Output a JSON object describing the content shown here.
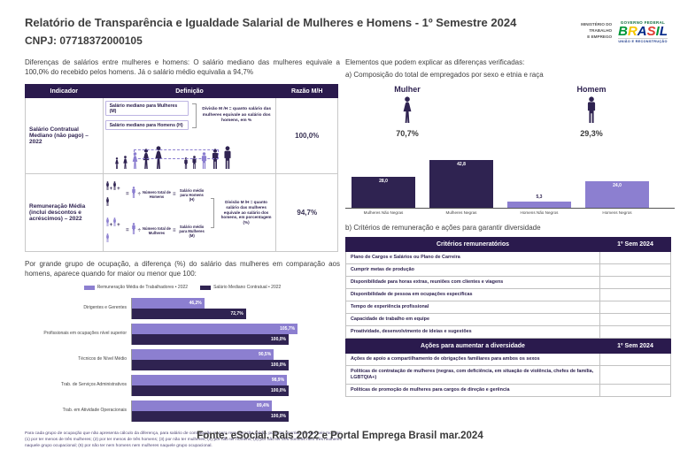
{
  "header": {
    "title": "Relatório de Transparência e Igualdade Salarial de Mulheres e Homens - 1º Semestre 2024",
    "cnpj": "CNPJ: 07718372000105",
    "logo": {
      "ministry": "MINISTÉRIO DO\nTRABALHO\nE EMPREGO",
      "gov_top": "GOVERNO FEDERAL",
      "gov_name": "BRASIL",
      "gov_sub": "UNIÃO E RECONSTRUÇÃO",
      "brasil_colors": [
        "#009739",
        "#f6c700",
        "#012788",
        "#e03c31",
        "#009739",
        "#012788"
      ]
    }
  },
  "left": {
    "intro": "Diferenças de salários entre mulheres e homens: O salário mediano das mulheres equivale a 100,0% do recebido pelos homens. Já o salário médio equivalia a 94,7%",
    "table": {
      "headers": [
        "Indicador",
        "Definição",
        "Razão M/H"
      ],
      "rows": [
        {
          "indicador": "Salário Contratual Mediano (não pago) – 2022",
          "def_label_m": "Salário mediano para Mulheres (M)",
          "def_label_h": "Salário mediano para Homens (H)",
          "def_note": "Divisão M /H = quanto salário das mulheres equivale ao salário dos homens, em %",
          "razao": "100,0%"
        },
        {
          "indicador": "Remuneração Média (inclui descontos e acréscimos) – 2022",
          "num_h": "Número total de Homens",
          "avg_h": "Salário médio para Homens (H)",
          "num_m": "Número total de Mulheres",
          "avg_m": "Salário médio para Mulheres (M)",
          "def_note": "Divisão M /H = quanto salário das mulheres equivale ao salário dos homens, em porcentagem (%)",
          "razao": "94,7%"
        }
      ]
    },
    "occupation_intro": "Por grande grupo de ocupação, a diferença (%) do salário das mulheres em comparação aos homens, aparece quando for maior ou menor que 100:",
    "footnote": "Para cada grupo de ocupação que não apresenta cálculo da diferença, para salário de contratação ou para remuneração média, pode ter ocorrido um dos seis motivos: (1) por ter menos de três mulheres; (2) por ter menos de três homens; (3) por não ter mulheres; (4) por não ter homens; (5) por não ter três homens nem três mulheres naquele grupo ocupacional; (6) por não ter nem homens nem mulheres naquele grupo ocupacional."
  },
  "right": {
    "heading": "Elementos que podem explicar as diferenças verificadas:",
    "sub_a": "a) Composição do total de empregados por sexo e etnia e raça",
    "mulher_label": "Mulher",
    "homem_label": "Homem",
    "sub_b": "b) Critérios de remuneração e ações para garantir diversidade",
    "table1": {
      "header": "Critérios remuneratórios",
      "period": "1º Sem 2024",
      "rows": [
        "Plano de Cargos e Salários ou Plano de Carreira",
        "Cumprir metas de produção",
        "Disponibilidade para horas extras, reuniões com clientes e viagens",
        "Disponibilidade de pessoa em ocupações específicas",
        "Tempo de experiência profissional",
        "Capacidade de trabalho em equipe",
        "Proatividade, desenvolvimento de ideias e sugestões"
      ]
    },
    "table2": {
      "header": "Ações para aumentar a diversidade",
      "period": "1º Sem 2024",
      "rows": [
        "Ações de apoio a compartilhamento de obrigações familiares para ambos os sexos",
        "Políticas de contratação de mulheres (negras, com deficiência, em situação de violência, chefes de família, LGBTQIA+)",
        "Políticas de promoção de mulheres para cargos de direção e gerência"
      ]
    }
  },
  "chart_data": [
    {
      "type": "bar",
      "title": "a) Composição do total de empregados por sexo e etnia e raça",
      "categories": [
        "Mulheres Não Negras",
        "Mulheres Negras",
        "Homens Não Negros",
        "Homens Negros"
      ],
      "values": [
        28.0,
        42.8,
        5.3,
        24.0
      ],
      "value_labels": [
        "28,0",
        "42,8",
        "5,3",
        "24,0"
      ],
      "bar_colors": [
        "#2f2351",
        "#2f2351",
        "#8c7fd0",
        "#8c7fd0"
      ],
      "ylim": [
        0,
        50
      ],
      "grid": false,
      "group_totals": {
        "mulher": "70,7%",
        "homem": "29,3%"
      }
    },
    {
      "type": "bar",
      "orientation": "horizontal",
      "categories": [
        "Dirigentes e Gerentes",
        "Profissionais em ocupações nível superior",
        "Técnicos de Nível Médio",
        "Trab. de Serviços Administrativos",
        "Trab. em Atividade Operacionais"
      ],
      "series": [
        {
          "name": "Remuneração Média de Trabalhadores • 2022",
          "color": "#8c7fd0",
          "values": [
            46.2,
            105.7,
            90.5,
            98.9,
            89.4
          ],
          "labels": [
            "46,2%",
            "105,7%",
            "90,5%",
            "98,9%",
            "89,4%"
          ]
        },
        {
          "name": "Salário Mediano Contratual • 2022",
          "color": "#2f2351",
          "values": [
            72.7,
            100.0,
            100.0,
            100.0,
            100.0
          ],
          "labels": [
            "72,7%",
            "100,0%",
            "100,0%",
            "100,0%",
            "100,0%"
          ]
        }
      ],
      "xlim": [
        0,
        110
      ],
      "legend_position": "top",
      "grid": false
    }
  ],
  "footer": {
    "source": "Fonte: eSocial. Rais 2022 e Portal Emprega Brasil mar.2024"
  }
}
